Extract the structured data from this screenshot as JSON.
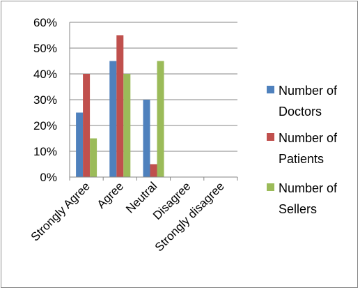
{
  "chart_data": {
    "type": "bar",
    "categories": [
      "Strongly Agree",
      "Agree",
      "Neutral",
      "Disagree",
      "Strongly disagree"
    ],
    "series": [
      {
        "name": "Number of Doctors",
        "color": "#4f81bd",
        "values": [
          0.25,
          0.45,
          0.3,
          0,
          0
        ]
      },
      {
        "name": "Number of Patients",
        "color": "#c0504d",
        "values": [
          0.4,
          0.55,
          0.05,
          0,
          0
        ]
      },
      {
        "name": "Number of Sellers",
        "color": "#9bbb59",
        "values": [
          0.15,
          0.4,
          0.45,
          0,
          0
        ]
      }
    ],
    "yticks": [
      "0%",
      "10%",
      "20%",
      "30%",
      "40%",
      "50%",
      "60%"
    ],
    "ylim": [
      0,
      0.6
    ],
    "grid": true,
    "legend_position": "right",
    "legend_lines": [
      [
        "Number of",
        "Doctors"
      ],
      [
        "Number of",
        "Patients"
      ],
      [
        "Number of",
        "Sellers"
      ]
    ],
    "title": "",
    "xlabel": "",
    "ylabel": ""
  }
}
